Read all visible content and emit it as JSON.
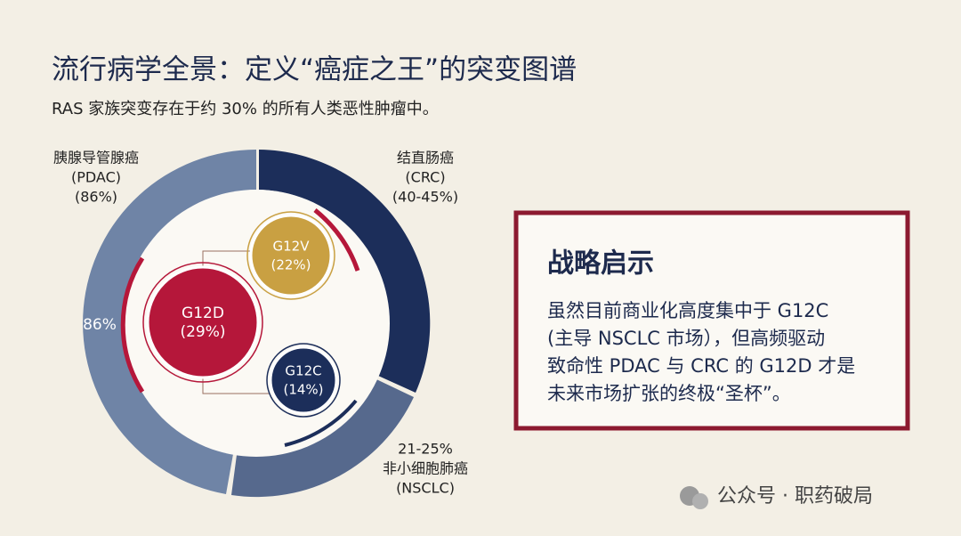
{
  "header": {
    "title": "流行病学全景：定义“癌症之王”的突变图谱",
    "subtitle": "RAS 家族突变存在于约 30% 的所有人类恶性肿瘤中。"
  },
  "donut": {
    "segments": [
      {
        "lines": [
          "胰腺导管腺癌",
          "(PDAC)",
          "(86%)"
        ]
      },
      {
        "lines": [
          "结直肠癌",
          "(CRC)",
          "(40-45%)"
        ]
      },
      {
        "lines": [
          "21-25%",
          "非小细胞肺癌",
          "(NSCLC)"
        ]
      }
    ],
    "inner_label": "86%"
  },
  "mutations": [
    {
      "name": "G12D",
      "share": "(29%)"
    },
    {
      "name": "G12V",
      "share": "(22%)"
    },
    {
      "name": "G12C",
      "share": "(14%)"
    }
  ],
  "callout": {
    "title": "战略启示",
    "lines": [
      "虽然目前商业化高度集中于 G12C",
      "(主导 NSCLC 市场），但高频驱动",
      "致命性 PDAC 与 CRC 的 G12D 才是",
      "未来市场扩张的终极“圣杯”。"
    ]
  },
  "footer": "公众号 · 职药破局"
}
